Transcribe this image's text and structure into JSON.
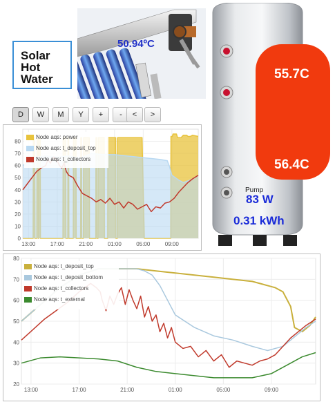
{
  "title": {
    "line1": "Solar",
    "line2": "Hot",
    "line3": "Water"
  },
  "collector": {
    "temperature": "50.94ºC"
  },
  "tank": {
    "top_temp": "55.7C",
    "bottom_temp": "56.4C",
    "pump_label": "Pump",
    "pump_power": "83 W",
    "energy": "0.31 kWh"
  },
  "toolbar": {
    "buttons": [
      "D",
      "W",
      "M",
      "Y",
      "+",
      "-",
      "<",
      ">"
    ],
    "active": "D"
  },
  "chart_data": [
    {
      "type": "line",
      "ylim": [
        0,
        90
      ],
      "yticks": [
        "0",
        "10",
        "20",
        "30",
        "40",
        "50",
        "60",
        "70",
        "80"
      ],
      "xticks": [
        "13:00",
        "17:00",
        "21:00",
        "01:00",
        "05:00",
        "09:00"
      ],
      "series": [
        {
          "name": "Node aqs: power",
          "color": "#e8c33c",
          "x": [
            0,
            0.45,
            0.46,
            0.52,
            0.53,
            0.61,
            0.62,
            0.66,
            0.67,
            0.69,
            0.7,
            0.76,
            0.77,
            1.2,
            1.25,
            1.75,
            1.76,
            1.87,
            1.88,
            1.96,
            1.97,
            2.0,
            2.01,
            2.2,
            2.21,
            2.32,
            2.33,
            2.52,
            2.53,
            2.56,
            2.57,
            2.64,
            2.65,
            2.9,
            2.91,
            3.18,
            3.19,
            3.22,
            3.23,
            3.28,
            3.29,
            3.55,
            3.56,
            3.7,
            3.71,
            4.05,
            4.06,
            4.12,
            4.13,
            5.2,
            5.3,
            6.45,
            6.46,
            6.52,
            6.55,
            6.7,
            6.75,
            6.9,
            7.0,
            7.15,
            7.2,
            7.3,
            7.4,
            7.65
          ],
          "y": [
            0,
            0,
            83,
            83,
            0,
            0,
            83,
            83,
            0,
            0,
            83,
            83,
            0,
            0,
            0,
            0,
            83,
            83,
            0,
            0,
            83,
            83,
            0,
            0,
            83,
            83,
            0,
            0,
            83,
            83,
            0,
            0,
            83,
            83,
            0,
            0,
            83,
            83,
            0,
            0,
            83,
            83,
            0,
            0,
            83,
            83,
            0,
            0,
            83,
            83,
            0,
            0,
            84,
            84,
            86,
            86,
            83,
            83,
            85,
            85,
            84,
            84,
            85,
            84
          ]
        },
        {
          "name": "Node aqs: t_deposit_top",
          "color": "#b9d9f2",
          "x": [
            0,
            0.3,
            0.6,
            1.0,
            1.5,
            2.0,
            2.5,
            3.0,
            3.5,
            4.0,
            4.5,
            5.0,
            5.5,
            6.0,
            6.3,
            6.4,
            6.5,
            6.8,
            7.0,
            7.3,
            7.65
          ],
          "y": [
            60,
            64,
            67,
            68,
            67,
            68,
            66,
            70,
            69,
            69,
            68,
            67,
            66,
            65,
            64,
            59,
            52,
            48,
            46,
            48,
            52
          ]
        },
        {
          "name": "Node aqs: t_collectors",
          "color": "#c0392b",
          "x": [
            0,
            0.2,
            0.4,
            0.6,
            0.8,
            1.0,
            1.1,
            1.2,
            1.35,
            1.5,
            1.6,
            1.7,
            1.8,
            1.9,
            2.0,
            2.2,
            2.4,
            2.6,
            2.8,
            3.0,
            3.2,
            3.4,
            3.6,
            3.8,
            4.0,
            4.2,
            4.4,
            4.6,
            4.8,
            5.0,
            5.2,
            5.4,
            5.6,
            5.8,
            6.0,
            6.2,
            6.4,
            6.6,
            6.8,
            7.0,
            7.2,
            7.4,
            7.65
          ],
          "y": [
            40,
            45,
            50,
            55,
            58,
            60,
            65,
            62,
            67,
            64,
            60,
            58,
            62,
            55,
            52,
            50,
            43,
            37,
            35,
            33,
            30,
            32,
            29,
            33,
            28,
            30,
            25,
            30,
            28,
            24,
            26,
            28,
            22,
            26,
            25,
            29,
            30,
            33,
            38,
            42,
            46,
            49,
            52
          ]
        }
      ]
    },
    {
      "type": "line",
      "ylim": [
        20,
        80
      ],
      "yticks": [
        "20",
        "30",
        "40",
        "50",
        "60",
        "70",
        "80"
      ],
      "xticks": [
        "13:00",
        "17:00",
        "21:00",
        "01:00",
        "05:00",
        "09:00"
      ],
      "series": [
        {
          "name": "Node aqs: t_deposit_top",
          "color": "#c9b03c",
          "x": [
            0,
            0.5,
            1.0,
            1.5,
            2.0,
            2.5,
            3.0,
            3.5,
            4.0,
            4.5,
            5.0,
            5.5,
            6.0,
            6.2,
            6.4,
            6.6,
            6.8,
            7.0,
            7.1,
            7.3,
            7.5,
            7.65
          ],
          "y": [
            50,
            58,
            66,
            72,
            75,
            75,
            75,
            74,
            73,
            72,
            71,
            70,
            69,
            68,
            67,
            66,
            64,
            57,
            47,
            45,
            48,
            52
          ]
        },
        {
          "name": "Node aqs: t_deposit_bottom",
          "color": "#a9c8de",
          "x": [
            0,
            0.5,
            1.0,
            1.5,
            2.0,
            2.5,
            3.0,
            3.2,
            3.4,
            3.6,
            3.8,
            4.0,
            4.5,
            5.0,
            5.5,
            6.0,
            6.2,
            6.4,
            6.6,
            6.8,
            7.0,
            7.2,
            7.4,
            7.65
          ],
          "y": [
            50,
            58,
            66,
            72,
            75,
            75,
            75,
            74,
            72,
            67,
            60,
            53,
            47,
            43,
            41,
            38,
            37,
            36,
            37,
            38,
            41,
            44,
            47,
            50
          ]
        },
        {
          "name": "Node aqs: t_collectors",
          "color": "#c0392b",
          "x": [
            0,
            0.3,
            0.6,
            0.9,
            1.2,
            1.5,
            1.8,
            1.95,
            2.05,
            2.1,
            2.2,
            2.3,
            2.4,
            2.5,
            2.6,
            2.7,
            2.8,
            2.9,
            3.0,
            3.1,
            3.2,
            3.3,
            3.4,
            3.5,
            3.6,
            3.7,
            3.8,
            3.9,
            4.0,
            4.2,
            4.4,
            4.6,
            4.8,
            5.0,
            5.2,
            5.4,
            5.6,
            5.8,
            6.0,
            6.2,
            6.4,
            6.6,
            6.8,
            7.0,
            7.2,
            7.4,
            7.65
          ],
          "y": [
            41,
            46,
            51,
            55,
            59,
            64,
            68,
            66,
            64,
            60,
            55,
            62,
            58,
            63,
            66,
            58,
            65,
            60,
            56,
            62,
            52,
            57,
            50,
            53,
            45,
            49,
            42,
            47,
            40,
            37,
            38,
            33,
            36,
            31,
            34,
            28,
            31,
            30,
            29,
            31,
            32,
            34,
            38,
            42,
            45,
            48,
            51
          ]
        },
        {
          "name": "Node aqs: t_external",
          "color": "#3b8a2e",
          "x": [
            0,
            0.5,
            1.0,
            1.5,
            2.0,
            2.5,
            3.0,
            3.5,
            4.0,
            4.5,
            5.0,
            5.5,
            6.0,
            6.5,
            7.0,
            7.3,
            7.65
          ],
          "y": [
            30,
            32.5,
            33,
            32.5,
            32,
            31,
            28,
            26,
            25,
            24,
            23,
            23,
            23,
            25,
            30,
            33,
            35
          ]
        }
      ]
    }
  ]
}
